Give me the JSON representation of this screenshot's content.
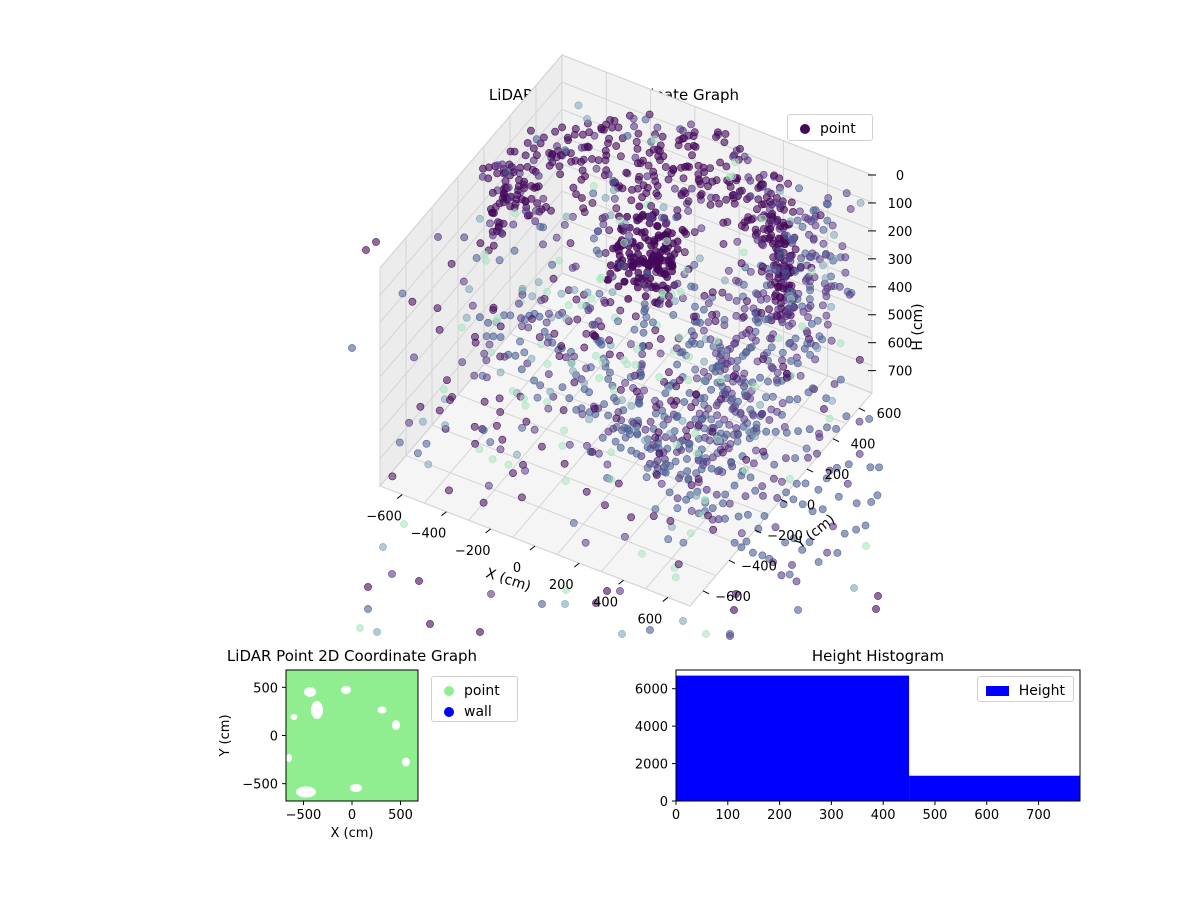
{
  "colors": {
    "dark_purple": "#44085a",
    "mid_purple": "#5a3a86",
    "slate": "#4c5f95",
    "teal": "#7fa6b7",
    "mint": "#a8e4bf",
    "light_green": "#90ee90",
    "blue": "#0000ff",
    "grid": "#d5d5d5",
    "pane": "#f2f2f2"
  },
  "chart_data": [
    {
      "type": "scatter",
      "title": "LiDAR Point 3D Coordinate Graph",
      "xlabel": "X (cm)",
      "ylabel": "Y (cm)",
      "zlabel": "H (cm)",
      "x_ticks": [
        "−600",
        "−400",
        "−200",
        "0",
        "200",
        "400",
        "600"
      ],
      "y_ticks": [
        "−600",
        "−400",
        "−200",
        "0",
        "200",
        "400",
        "600"
      ],
      "z_ticks": [
        "0",
        "100",
        "200",
        "300",
        "400",
        "500",
        "600",
        "700"
      ],
      "xlim": [
        -700,
        700
      ],
      "ylim": [
        -700,
        700
      ],
      "zlim": [
        0,
        780
      ],
      "z_axis_inverted": true,
      "grid": true,
      "legend": {
        "placement": "top-right",
        "entries": [
          "point"
        ]
      },
      "series": [
        {
          "name": "point",
          "description_values": "approx. 8000 LiDAR points forming a dome/room shell; dense ring near H 0–200, cluster near center"
        }
      ]
    },
    {
      "type": "scatter",
      "title": "LiDAR Point 2D Coordinate Graph",
      "xlabel": "X (cm)",
      "ylabel": "Y (cm)",
      "x_ticks": [
        "−500",
        "0",
        "500"
      ],
      "y_ticks": [
        "500",
        "0",
        "−500"
      ],
      "xlim": [
        -680,
        680
      ],
      "ylim": [
        -680,
        680
      ],
      "legend": {
        "placement": "right-outside",
        "entries": [
          "point",
          "wall"
        ]
      },
      "series": [
        {
          "name": "point",
          "color": "#90ee90"
        },
        {
          "name": "wall",
          "color": "#0000ff"
        }
      ]
    },
    {
      "type": "bar",
      "title": "Height Histogram",
      "x_ticks": [
        "0",
        "100",
        "200",
        "300",
        "400",
        "500",
        "600",
        "700"
      ],
      "y_ticks": [
        "0",
        "2000",
        "4000",
        "6000"
      ],
      "xlim": [
        0,
        780
      ],
      "ylim": [
        0,
        7000
      ],
      "legend": {
        "placement": "top-right",
        "entries": [
          "Height"
        ]
      },
      "series": [
        {
          "name": "Height",
          "color": "#0000ff",
          "bins": [
            {
              "from": 0,
              "to": 450,
              "count": 6700
            },
            {
              "from": 450,
              "to": 780,
              "count": 1350
            }
          ]
        }
      ]
    }
  ]
}
